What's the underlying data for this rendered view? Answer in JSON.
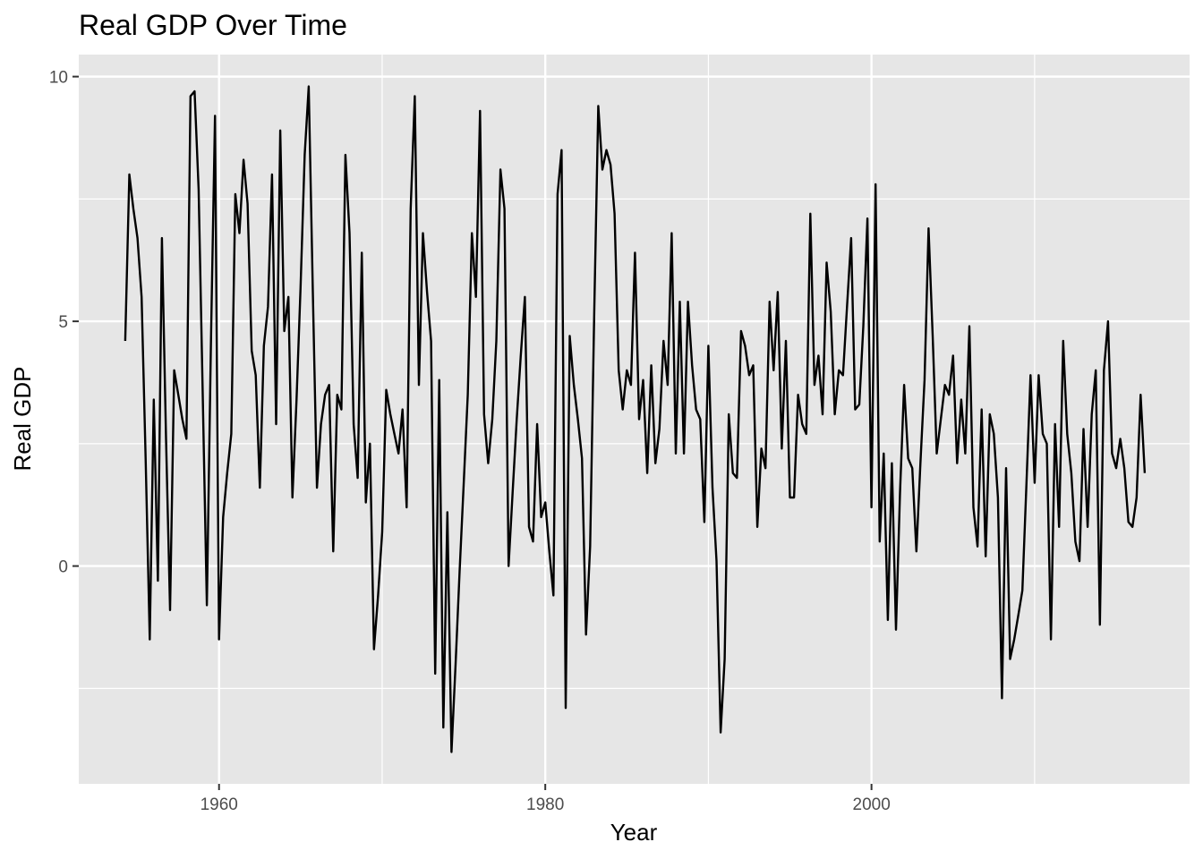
{
  "chart_data": {
    "type": "line",
    "title": "Real GDP Over Time",
    "xlabel": "Year",
    "ylabel": "Real GDP",
    "xlim": [
      1951.4,
      2019.5
    ],
    "ylim": [
      -4.45,
      10.45
    ],
    "x_ticks": [
      1960,
      1980,
      2000
    ],
    "y_ticks": [
      0,
      5,
      10
    ],
    "grid": true,
    "panel_background": "#e6e6e6",
    "grid_color": "#ffffff",
    "line_color": "#000000",
    "series": [
      {
        "x": [
          1954.25,
          1954.5,
          1954.75,
          1955.0,
          1955.25,
          1955.5,
          1955.75,
          1956.0,
          1956.25,
          1956.5,
          1956.75,
          1957.0,
          1957.25,
          1957.5,
          1957.75,
          1958.0,
          1958.25,
          1958.5,
          1958.75,
          1959.0,
          1959.25,
          1959.5,
          1959.75,
          1960.0,
          1960.25,
          1960.5,
          1960.75,
          1961.0,
          1961.25,
          1961.5,
          1961.75,
          1962.0,
          1962.25,
          1962.5,
          1962.75,
          1963.0,
          1963.25,
          1963.5,
          1963.75,
          1964.0,
          1964.25,
          1964.5,
          1964.75,
          1965.0,
          1965.25,
          1965.5,
          1965.75,
          1966.0,
          1966.25,
          1966.5,
          1966.75,
          1967.0,
          1967.25,
          1967.5,
          1967.75,
          1968.0,
          1968.25,
          1968.5,
          1968.75,
          1969.0,
          1969.25,
          1969.5,
          1969.75,
          1970.0,
          1970.25,
          1970.5,
          1970.75,
          1971.0,
          1971.25,
          1971.5,
          1971.75,
          1972.0,
          1972.25,
          1972.5,
          1972.75,
          1973.0,
          1973.25,
          1973.5,
          1973.75,
          1974.0,
          1974.25,
          1974.5,
          1974.75,
          1975.0,
          1975.25,
          1975.5,
          1975.75,
          1976.0,
          1976.25,
          1976.5,
          1976.75,
          1977.0,
          1977.25,
          1977.5,
          1977.75,
          1978.0,
          1978.25,
          1978.5,
          1978.75,
          1979.0,
          1979.25,
          1979.5,
          1979.75,
          1980.0,
          1980.25,
          1980.5,
          1980.75,
          1981.0,
          1981.25,
          1981.5,
          1981.75,
          1982.0,
          1982.25,
          1982.5,
          1982.75,
          1983.0,
          1983.25,
          1983.5,
          1983.75,
          1984.0,
          1984.25,
          1984.5,
          1984.75,
          1985.0,
          1985.25,
          1985.5,
          1985.75,
          1986.0,
          1986.25,
          1986.5,
          1986.75,
          1987.0,
          1987.25,
          1987.5,
          1987.75,
          1988.0,
          1988.25,
          1988.5,
          1988.75,
          1989.0,
          1989.25,
          1989.5,
          1989.75,
          1990.0,
          1990.25,
          1990.5,
          1990.75,
          1991.0,
          1991.25,
          1991.5,
          1991.75,
          1992.0,
          1992.25,
          1992.5,
          1992.75,
          1993.0,
          1993.25,
          1993.5,
          1993.75,
          1994.0,
          1994.25,
          1994.5,
          1994.75,
          1995.0,
          1995.25,
          1995.5,
          1995.75,
          1996.0,
          1996.25,
          1996.5,
          1996.75,
          1997.0,
          1997.25,
          1997.5,
          1997.75,
          1998.0,
          1998.25,
          1998.5,
          1998.75,
          1999.0,
          1999.25,
          1999.5,
          1999.75,
          2000.0,
          2000.25,
          2000.5,
          2000.75,
          2001.0,
          2001.25,
          2001.5,
          2001.75,
          2002.0,
          2002.25,
          2002.5,
          2002.75,
          2003.0,
          2003.25,
          2003.5,
          2003.75,
          2004.0,
          2004.25,
          2004.5,
          2004.75,
          2005.0,
          2005.25,
          2005.5,
          2005.75,
          2006.0,
          2006.25,
          2006.5,
          2006.75,
          2007.0,
          2007.25,
          2007.5,
          2007.75,
          2008.0,
          2008.25,
          2008.5,
          2008.75,
          2009.0,
          2009.25,
          2009.5,
          2009.75,
          2010.0,
          2010.25,
          2010.5,
          2010.75,
          2011.0,
          2011.25,
          2011.5,
          2011.75,
          2012.0,
          2012.25,
          2012.5,
          2012.75,
          2013.0,
          2013.25,
          2013.5,
          2013.75,
          2014.0,
          2014.25,
          2014.5,
          2014.75,
          2015.0,
          2015.25,
          2015.5,
          2015.75,
          2016.0,
          2016.25,
          2016.5,
          2016.75
        ],
        "y": [
          4.6,
          8.0,
          7.3,
          6.7,
          5.5,
          2.2,
          -1.5,
          3.4,
          -0.3,
          6.7,
          2.6,
          -0.9,
          4.0,
          3.5,
          3.0,
          2.6,
          9.6,
          9.7,
          7.7,
          3.5,
          -0.8,
          4.5,
          9.2,
          -1.5,
          1.0,
          1.9,
          2.7,
          7.6,
          6.8,
          8.3,
          7.4,
          4.4,
          3.9,
          1.6,
          4.5,
          5.3,
          8.0,
          2.9,
          8.9,
          4.8,
          5.5,
          1.4,
          3.4,
          5.7,
          8.4,
          9.8,
          5.6,
          1.6,
          2.9,
          3.5,
          3.7,
          0.3,
          3.5,
          3.2,
          8.4,
          6.8,
          2.9,
          1.8,
          6.4,
          1.3,
          2.5,
          -1.7,
          -0.6,
          0.7,
          3.6,
          3.1,
          2.7,
          2.3,
          3.2,
          1.2,
          7.3,
          9.6,
          3.7,
          6.8,
          5.6,
          4.6,
          -2.2,
          3.8,
          -3.3,
          1.1,
          -3.8,
          -2.0,
          -0.1,
          1.7,
          3.5,
          6.8,
          5.5,
          9.3,
          3.1,
          2.1,
          3.0,
          4.6,
          8.1,
          7.3,
          0.0,
          1.5,
          3.0,
          4.3,
          5.5,
          0.8,
          0.5,
          2.9,
          1.0,
          1.3,
          0.3,
          -0.6,
          7.6,
          8.5,
          -2.9,
          4.7,
          3.7,
          3.0,
          2.2,
          -1.4,
          0.4,
          5.2,
          9.4,
          8.1,
          8.5,
          8.2,
          7.2,
          4.0,
          3.2,
          4.0,
          3.7,
          6.4,
          3.0,
          3.8,
          1.9,
          4.1,
          2.1,
          2.8,
          4.6,
          3.7,
          6.8,
          2.3,
          5.4,
          2.3,
          5.4,
          4.1,
          3.2,
          3.0,
          0.9,
          4.5,
          1.6,
          0.1,
          -3.4,
          -1.9,
          3.1,
          1.9,
          1.8,
          4.8,
          4.5,
          3.9,
          4.1,
          0.8,
          2.4,
          2.0,
          5.4,
          4.0,
          5.6,
          2.4,
          4.6,
          1.4,
          1.4,
          3.5,
          2.9,
          2.7,
          7.2,
          3.7,
          4.3,
          3.1,
          6.2,
          5.2,
          3.1,
          4.0,
          3.9,
          5.3,
          6.7,
          3.2,
          3.3,
          4.9,
          7.1,
          1.2,
          7.8,
          0.5,
          2.3,
          -1.1,
          2.1,
          -1.3,
          1.5,
          3.7,
          2.2,
          2.0,
          0.3,
          2.1,
          3.8,
          6.9,
          4.7,
          2.3,
          3.0,
          3.7,
          3.5,
          4.3,
          2.1,
          3.4,
          2.3,
          4.9,
          1.2,
          0.4,
          3.2,
          0.2,
          3.1,
          2.7,
          1.4,
          -2.7,
          2.0,
          -1.9,
          -1.5,
          -1.0,
          -0.5,
          1.7,
          3.9,
          1.7,
          3.9,
          2.7,
          2.5,
          -1.5,
          2.9,
          0.8,
          4.6,
          2.7,
          1.9,
          0.5,
          0.1,
          2.8,
          0.8,
          3.1,
          4.0,
          -1.2,
          4.0,
          5.0,
          2.3,
          2.0,
          2.6,
          2.0,
          0.9,
          0.8,
          1.4,
          3.5,
          1.9
        ]
      }
    ]
  }
}
